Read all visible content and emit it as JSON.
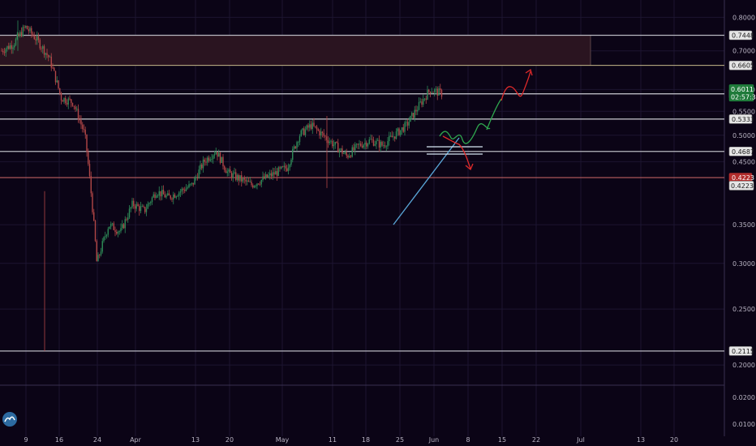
{
  "colors": {
    "background": "#0b0416",
    "grid": "#1c1530",
    "candle_up": "#2e8b57",
    "candle_down": "#b24747",
    "level_line": "#b8b8c0",
    "current_line": "#d26a6a",
    "zone_fill": "#2a1420",
    "zone_border": "#c6b98a",
    "trendline": "#5aa7d8",
    "projection_green": "#2fa84f",
    "projection_red": "#e02a2a",
    "tag_price_bg": "#1f7a3a",
    "tag_current_bg": "#b22d2d",
    "tag_level_bg": "#e6e6e6"
  },
  "chart_data": {
    "type": "candlestick",
    "title": "",
    "xlabel": "",
    "ylabel": "",
    "log_scale": true,
    "ylim": [
      0.195,
      0.83
    ],
    "y_ticks": [
      "0.8000",
      "0.7000",
      "0.6000",
      "0.5500",
      "0.5000",
      "0.4500",
      "0.3500",
      "0.3000",
      "0.2500",
      "0.2000"
    ],
    "x_ticks": [
      "9",
      "16",
      "24",
      "Apr",
      "13",
      "20",
      "May",
      "11",
      "18",
      "25",
      "Jun",
      "8",
      "15",
      "22",
      "Jul",
      "13",
      "20"
    ],
    "price_path": [
      [
        "9",
        0.7
      ],
      [
        "9",
        0.72
      ],
      [
        "9",
        0.77
      ],
      [
        "9",
        0.73
      ],
      [
        "9",
        0.68
      ],
      [
        "16",
        0.58
      ],
      [
        "16",
        0.57
      ],
      [
        "16",
        0.5
      ],
      [
        "16",
        0.3
      ],
      [
        "16",
        0.35
      ],
      [
        "16",
        0.34
      ],
      [
        "16",
        0.38
      ],
      [
        "24",
        0.37
      ],
      [
        "24",
        0.4
      ],
      [
        "24",
        0.39
      ],
      [
        "Apr",
        0.4
      ],
      [
        "Apr",
        0.41
      ],
      [
        "Apr",
        0.45
      ],
      [
        "Apr",
        0.47
      ],
      [
        "Apr",
        0.43
      ],
      [
        "13",
        0.42
      ],
      [
        "13",
        0.41
      ],
      [
        "20",
        0.42
      ],
      [
        "20",
        0.43
      ],
      [
        "20",
        0.44
      ],
      [
        "May",
        0.5
      ],
      [
        "May",
        0.52
      ],
      [
        "May",
        0.5
      ],
      [
        "11",
        0.48
      ],
      [
        "11",
        0.46
      ],
      [
        "18",
        0.48
      ],
      [
        "18",
        0.49
      ],
      [
        "25",
        0.48
      ],
      [
        "25",
        0.5
      ],
      [
        "25",
        0.52
      ],
      [
        "Jun",
        0.56
      ],
      [
        "Jun",
        0.6
      ],
      [
        "Jun",
        0.59
      ]
    ],
    "horizontal_levels": [
      {
        "label": "0.7448",
        "value": 0.7448,
        "kind": "level"
      },
      {
        "label": "0.6605",
        "value": 0.6605,
        "kind": "zone-bottom"
      },
      {
        "label": "0.5898",
        "value": 0.5898,
        "kind": "level"
      },
      {
        "label": "0.5333",
        "value": 0.5333,
        "kind": "level"
      },
      {
        "label": "0.4687",
        "value": 0.4687,
        "kind": "level"
      },
      {
        "label": "0.4223",
        "value": 0.4223,
        "kind": "current"
      },
      {
        "label": "0.2115",
        "value": 0.2115,
        "kind": "level"
      }
    ],
    "resistance_zone": {
      "top": 0.7448,
      "bottom": 0.6605
    },
    "price_tags": [
      {
        "id": "last-price",
        "label": "0.6011",
        "value": 0.6011,
        "kind": "price"
      },
      {
        "id": "countdown",
        "label": "02:57:31",
        "value": 0.583,
        "kind": "price"
      },
      {
        "id": "close",
        "label": "0.4223",
        "value": 0.4223,
        "kind": "current"
      },
      {
        "id": "close-dup",
        "label": "0.4223",
        "value": 0.409,
        "kind": "level"
      }
    ],
    "indicator_pane": {
      "y_ticks": [
        "0.0200",
        "0.0100"
      ]
    },
    "projections": {
      "trendline": [
        [
          0.435,
          "25"
        ],
        [
          0.598,
          "Jun"
        ]
      ],
      "green_path": "bullish zig-zag toward 0.66",
      "red_path": "extension toward 0.71"
    }
  }
}
